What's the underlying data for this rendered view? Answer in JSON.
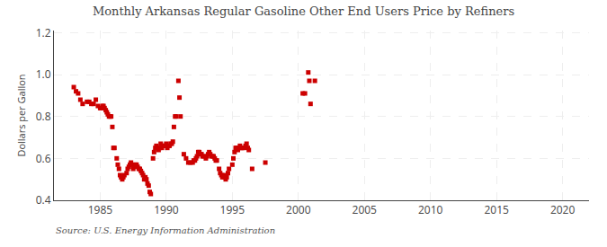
{
  "chart_data": {
    "type": "scatter",
    "title": "Monthly Arkansas Regular Gasoline Other End Users Price by Refiners",
    "ylabel": "Dollars per Gallon",
    "annotations": [
      "Source: U.S. Energy Information Administration"
    ],
    "color": "#cc0000",
    "marker": "square",
    "grid": true,
    "xlim": [
      1981.5,
      2022
    ],
    "ylim": [
      0.4,
      1.21
    ],
    "xticks": [
      1985,
      1990,
      1995,
      2000,
      2005,
      2010,
      2015,
      2020
    ],
    "yticks": [
      0.4,
      0.6,
      0.8,
      {
        "value": 1.0,
        "label": "1.0"
      },
      1.2
    ],
    "x": [
      1983.0,
      1983.17,
      1983.33,
      1983.5,
      1983.67,
      1984.0,
      1984.17,
      1984.33,
      1984.5,
      1984.67,
      1984.83,
      1985.0,
      1985.08,
      1985.17,
      1985.25,
      1985.33,
      1985.42,
      1985.5,
      1985.58,
      1985.67,
      1985.75,
      1985.83,
      1985.92,
      1986.0,
      1986.08,
      1986.25,
      1986.33,
      1986.42,
      1986.5,
      1986.58,
      1986.67,
      1986.75,
      1986.83,
      1987.0,
      1987.08,
      1987.17,
      1987.25,
      1987.33,
      1987.42,
      1987.5,
      1987.58,
      1987.67,
      1987.75,
      1987.83,
      1987.92,
      1988.0,
      1988.08,
      1988.17,
      1988.25,
      1988.33,
      1988.42,
      1988.5,
      1988.58,
      1988.67,
      1988.75,
      1988.83,
      1989.0,
      1989.08,
      1989.17,
      1989.25,
      1989.33,
      1989.42,
      1989.5,
      1989.58,
      1989.67,
      1989.75,
      1989.83,
      1989.92,
      1990.0,
      1990.08,
      1990.17,
      1990.25,
      1990.33,
      1990.42,
      1990.5,
      1990.58,
      1990.67,
      1990.75,
      1990.92,
      1991.0,
      1991.08,
      1991.33,
      1991.5,
      1991.67,
      1991.83,
      1992.0,
      1992.08,
      1992.17,
      1992.25,
      1992.33,
      1992.42,
      1992.5,
      1992.58,
      1992.67,
      1992.75,
      1992.83,
      1993.0,
      1993.08,
      1993.17,
      1993.25,
      1993.33,
      1993.42,
      1993.5,
      1993.58,
      1993.67,
      1993.75,
      1993.83,
      1994.0,
      1994.08,
      1994.17,
      1994.25,
      1994.33,
      1994.42,
      1994.5,
      1994.58,
      1994.67,
      1994.75,
      1995.0,
      1995.08,
      1995.17,
      1995.25,
      1995.33,
      1995.42,
      1995.5,
      1995.58,
      1995.67,
      1995.75,
      1995.83,
      1996.0,
      1996.08,
      1996.17,
      1996.25,
      1996.5,
      1997.5,
      2000.33,
      2000.5,
      2000.75,
      2000.83,
      2000.92,
      2001.25
    ],
    "values": [
      0.94,
      0.92,
      0.91,
      0.88,
      0.86,
      0.87,
      0.87,
      0.86,
      0.86,
      0.88,
      0.85,
      0.84,
      0.84,
      0.85,
      0.85,
      0.84,
      0.83,
      0.82,
      0.81,
      0.8,
      0.8,
      0.8,
      0.75,
      0.65,
      0.65,
      0.6,
      0.57,
      0.55,
      0.52,
      0.51,
      0.5,
      0.51,
      0.52,
      0.53,
      0.55,
      0.56,
      0.57,
      0.58,
      0.57,
      0.55,
      0.56,
      0.57,
      0.57,
      0.56,
      0.55,
      0.55,
      0.54,
      0.53,
      0.52,
      0.5,
      0.51,
      0.5,
      0.48,
      0.47,
      0.44,
      0.43,
      0.6,
      0.63,
      0.65,
      0.66,
      0.65,
      0.64,
      0.65,
      0.67,
      0.65,
      0.66,
      0.66,
      0.66,
      0.67,
      0.65,
      0.66,
      0.66,
      0.67,
      0.67,
      0.68,
      0.75,
      0.8,
      0.8,
      0.97,
      0.89,
      0.8,
      0.62,
      0.6,
      0.58,
      0.58,
      0.58,
      0.59,
      0.59,
      0.6,
      0.61,
      0.63,
      0.63,
      0.62,
      0.62,
      0.61,
      0.61,
      0.6,
      0.61,
      0.62,
      0.63,
      0.62,
      0.61,
      0.61,
      0.61,
      0.6,
      0.59,
      0.59,
      0.55,
      0.53,
      0.52,
      0.51,
      0.52,
      0.51,
      0.5,
      0.51,
      0.53,
      0.55,
      0.57,
      0.6,
      0.63,
      0.65,
      0.65,
      0.64,
      0.65,
      0.66,
      0.65,
      0.65,
      0.65,
      0.66,
      0.67,
      0.65,
      0.64,
      0.55,
      0.58,
      0.91,
      0.91,
      1.01,
      0.97,
      0.86,
      0.97
    ]
  }
}
